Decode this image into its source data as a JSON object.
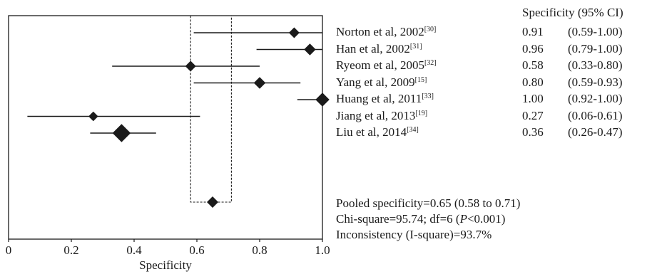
{
  "chart_data": {
    "type": "forest",
    "xlabel": "Specificity",
    "xlim": [
      0,
      1.0
    ],
    "xticks": [
      "0",
      "0.2",
      "0.4",
      "0.6",
      "0.8",
      "1.0"
    ],
    "tick_values": [
      0,
      0.2,
      0.4,
      0.6,
      0.8,
      1.0
    ],
    "column_header": "Specificity (95% CI)",
    "studies": [
      {
        "name": "Norton et al, 2002",
        "ref": "[30]",
        "value": 0.91,
        "value_text": "0.91",
        "ci_low": 0.59,
        "ci_high": 1.0,
        "ci_text": "(0.59-1.00)",
        "weight": 1.0
      },
      {
        "name": "Han et al, 2002",
        "ref": "[31]",
        "value": 0.96,
        "value_text": "0.96",
        "ci_low": 0.79,
        "ci_high": 1.0,
        "ci_text": "(0.79-1.00)",
        "weight": 1.1
      },
      {
        "name": "Ryeom et al, 2005",
        "ref": "[32]",
        "value": 0.58,
        "value_text": "0.58",
        "ci_low": 0.33,
        "ci_high": 0.8,
        "ci_text": "(0.33-0.80)",
        "weight": 1.0
      },
      {
        "name": "Yang et al, 2009",
        "ref": "[15]",
        "value": 0.8,
        "value_text": "0.80",
        "ci_low": 0.59,
        "ci_high": 0.93,
        "ci_text": "(0.59-0.93)",
        "weight": 1.1
      },
      {
        "name": "Huang et al, 2011",
        "ref": "[33]",
        "value": 1.0,
        "value_text": "1.00",
        "ci_low": 0.92,
        "ci_high": 1.0,
        "ci_text": "(0.92-1.00)",
        "weight": 1.3
      },
      {
        "name": "Jiang et al, 2013",
        "ref": "[19]",
        "value": 0.27,
        "value_text": "0.27",
        "ci_low": 0.06,
        "ci_high": 0.61,
        "ci_text": "(0.06-0.61)",
        "weight": 0.9
      },
      {
        "name": "Liu et al, 2014",
        "ref": "[34]",
        "value": 0.36,
        "value_text": "0.36",
        "ci_low": 0.26,
        "ci_high": 0.47,
        "ci_text": "(0.26-0.47)",
        "weight": 1.7
      }
    ],
    "pooled": {
      "value": 0.65,
      "ci_low": 0.58,
      "ci_high": 0.71
    },
    "stats": [
      "Pooled specificity=0.65 (0.58 to 0.71)",
      "Inconsistency (I-square)=93.7%"
    ],
    "chi_square": {
      "prefix": "Chi-square=95.74; df=6 (",
      "p_symbol": "P",
      "suffix": "<0.001)"
    }
  }
}
